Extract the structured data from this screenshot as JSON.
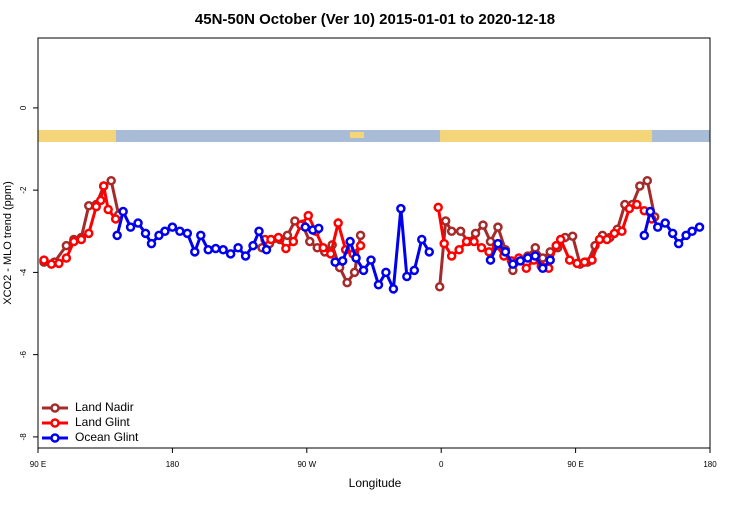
{
  "chart_data": {
    "type": "line",
    "title": "45N-50N October (Ver 10)   2015-01-01 to 2020-12-18",
    "x_label": "Longitude",
    "y_label": "XCO2 - MLO trend (ppm)",
    "xlim": [
      90,
      540
    ],
    "xticks": [
      {
        "value": 90,
        "label": "90 E"
      },
      {
        "value": 180,
        "label": "180"
      },
      {
        "value": 270,
        "label": "90 W"
      },
      {
        "value": 360,
        "label": "0"
      },
      {
        "value": 450,
        "label": "90 E"
      },
      {
        "value": 540,
        "label": "180"
      }
    ],
    "ylim": [
      -8.27,
      1.7
    ],
    "yticks": [
      0,
      -2,
      -4,
      -6,
      -8
    ],
    "legend": "bottom-left",
    "series": [
      {
        "name": "Land Nadir",
        "color": "#a52a2a",
        "x": [
          94,
          101,
          109,
          114,
          119,
          124,
          129,
          134,
          139,
          144,
          null,
          240,
          245,
          252,
          257,
          262,
          267,
          272,
          277,
          282,
          287,
          292,
          297,
          302,
          306,
          null,
          359,
          363,
          367,
          373,
          378,
          383,
          388,
          393,
          398,
          403,
          408,
          413,
          418,
          423,
          428,
          433,
          438,
          443,
          448,
          453,
          458,
          463,
          468,
          473,
          478,
          483,
          488,
          493,
          498,
          503
        ],
        "values": [
          -3.75,
          -3.75,
          -3.35,
          -3.2,
          -3.15,
          -2.38,
          -2.35,
          -1.9,
          -1.77,
          -2.6,
          null,
          -3.4,
          -3.3,
          -3.2,
          -3.1,
          -2.75,
          -2.83,
          -3.25,
          -3.4,
          -3.5,
          -3.33,
          -3.88,
          -4.25,
          -4.0,
          -3.1,
          null,
          -4.35,
          -2.75,
          -3.0,
          -3.0,
          -3.25,
          -3.05,
          -2.85,
          -3.25,
          -2.9,
          -3.45,
          -3.95,
          -3.7,
          -3.6,
          -3.4,
          -3.65,
          -3.5,
          -3.4,
          -3.15,
          -3.12,
          -3.8,
          -3.75,
          -3.35,
          -3.1,
          -3.15,
          -2.95,
          -2.35,
          -2.35,
          -1.9,
          -1.77,
          -2.65
        ]
      },
      {
        "name": "Land Glint",
        "color": "#ff0000",
        "x": [
          94,
          99,
          104,
          109,
          114,
          119,
          124,
          129,
          132,
          134,
          137,
          142,
          null,
          242,
          246,
          251,
          256,
          261,
          266,
          271,
          276,
          281,
          286,
          291,
          296,
          301,
          306,
          null,
          358,
          362,
          367,
          372,
          377,
          382,
          387,
          392,
          397,
          402,
          407,
          412,
          417,
          422,
          427,
          432,
          437,
          440,
          446,
          451,
          456,
          461,
          466,
          471,
          476,
          481,
          486,
          491,
          496,
          501
        ],
        "values": [
          -3.7,
          -3.8,
          -3.78,
          -3.65,
          -3.25,
          -3.2,
          -3.05,
          -2.4,
          -2.25,
          -1.9,
          -2.47,
          -2.7,
          null,
          -3.2,
          -3.2,
          -3.15,
          -3.42,
          -3.25,
          -2.85,
          -2.62,
          -3.0,
          -3.4,
          -3.55,
          -2.8,
          -3.45,
          -3.55,
          -3.35,
          null,
          -2.42,
          -3.3,
          -3.6,
          -3.45,
          -3.25,
          -3.25,
          -3.4,
          -3.5,
          -3.35,
          -3.6,
          -3.72,
          -3.65,
          -3.9,
          -3.7,
          -3.85,
          -3.9,
          -3.35,
          -3.2,
          -3.7,
          -3.78,
          -3.75,
          -3.7,
          -3.2,
          -3.2,
          -3.05,
          -3.0,
          -2.45,
          -2.35,
          -2.5,
          -2.7
        ]
      },
      {
        "name": "Ocean Glint",
        "color": "#0000ee",
        "x": [
          143,
          147,
          152,
          157,
          162,
          166,
          171,
          175,
          180,
          185,
          190,
          195,
          199,
          204,
          209,
          214,
          219,
          224,
          229,
          234,
          238,
          243,
          null,
          269,
          274,
          278,
          null,
          289,
          294,
          299,
          303,
          308,
          313,
          318,
          323,
          328,
          333,
          337,
          342,
          347,
          352,
          null,
          393,
          398,
          403,
          408,
          413,
          418,
          423,
          428,
          433,
          null,
          496,
          500,
          505,
          510,
          515,
          519,
          524,
          528,
          533
        ],
        "values": [
          -3.1,
          -2.52,
          -2.9,
          -2.8,
          -3.05,
          -3.3,
          -3.1,
          -3.0,
          -2.9,
          -3.0,
          -3.05,
          -3.5,
          -3.1,
          -3.45,
          -3.42,
          -3.45,
          -3.55,
          -3.4,
          -3.6,
          -3.35,
          -3.0,
          -3.45,
          null,
          -2.9,
          -2.97,
          -2.93,
          null,
          -3.75,
          -3.72,
          -3.25,
          -3.65,
          -3.95,
          -3.7,
          -4.3,
          -4.0,
          -4.4,
          -2.45,
          -4.1,
          -3.95,
          -3.2,
          -3.5,
          null,
          -3.7,
          -3.3,
          -3.5,
          -3.8,
          -3.72,
          -3.65,
          -3.6,
          -3.9,
          -3.7,
          null,
          -3.1,
          -2.52,
          -2.9,
          -2.8,
          -3.05,
          -3.3,
          -3.1,
          -3.0,
          -2.9
        ]
      }
    ]
  }
}
